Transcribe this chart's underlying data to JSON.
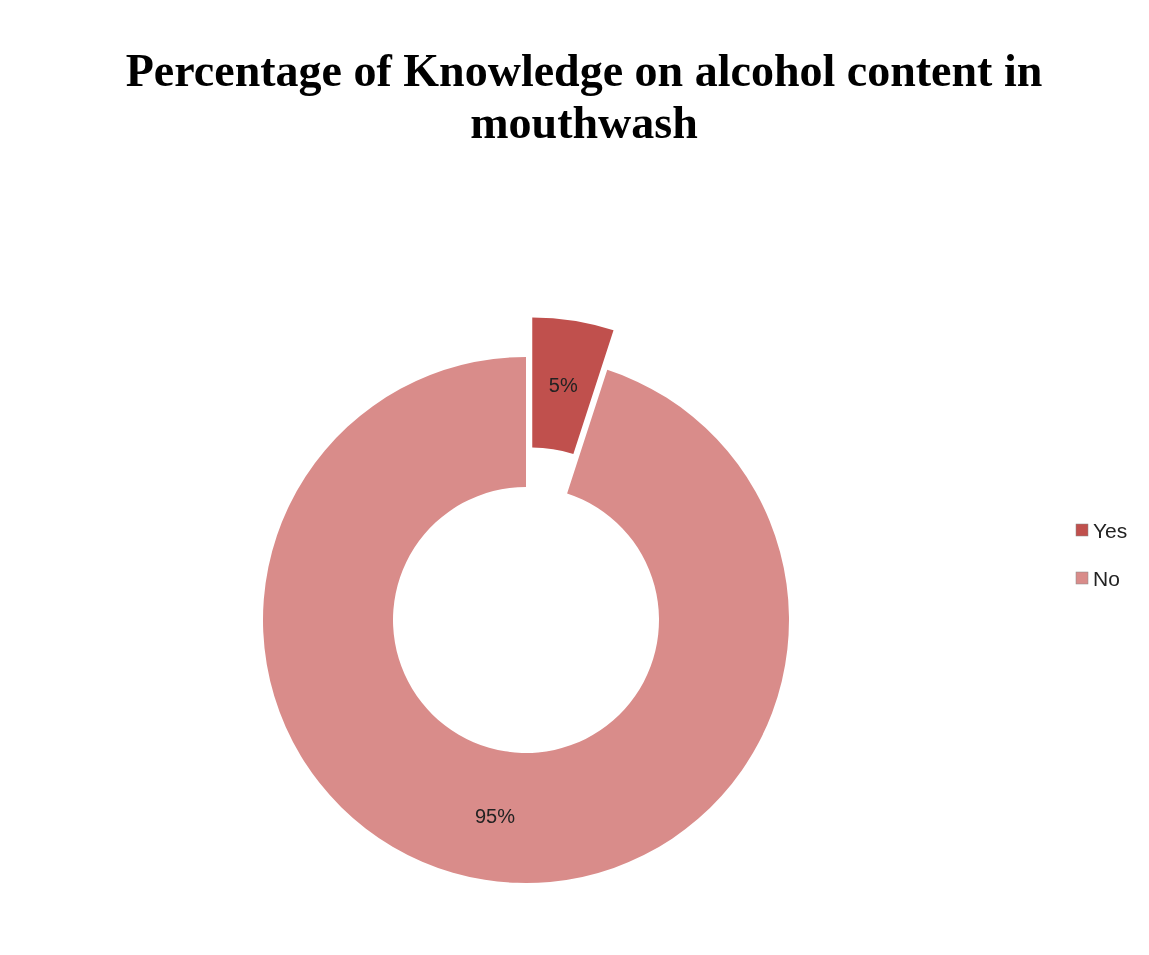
{
  "chart_data": {
    "type": "donut",
    "title": "Percentage of Knowledge on alcohol content in mouthwash",
    "categories": [
      "Yes",
      "No"
    ],
    "values": [
      5,
      95
    ],
    "colors": [
      "#c0504d",
      "#d98c8a"
    ],
    "value_labels": [
      "5%",
      "95%"
    ],
    "legend": "right"
  }
}
